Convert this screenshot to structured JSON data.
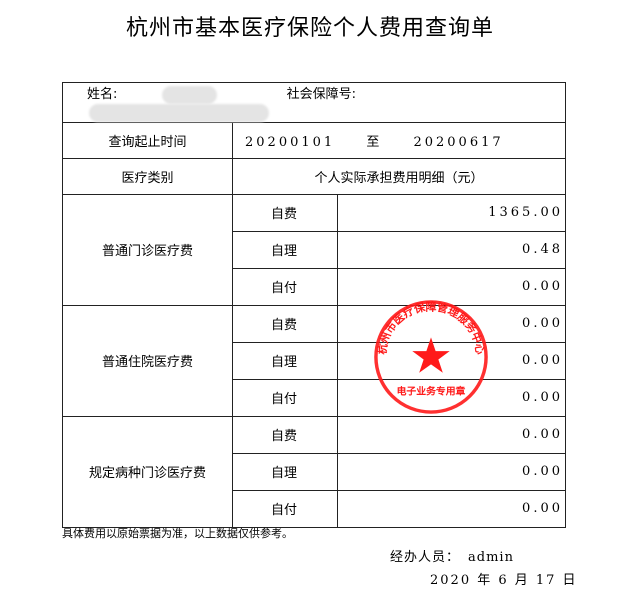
{
  "title": "杭州市基本医疗保险个人费用查询单",
  "header": {
    "name_label": "姓名:",
    "ssn_label": "社会保障号:"
  },
  "query": {
    "label": "查询起止时间",
    "start": "20200101",
    "sep": "至",
    "end": "20200617"
  },
  "columns": {
    "category": "医疗类别",
    "detail": "个人实际承担费用明细（元）"
  },
  "groups": [
    {
      "category": "普通门诊医疗费",
      "items": [
        {
          "label": "自费",
          "value": "1365.00"
        },
        {
          "label": "自理",
          "value": "0.48"
        },
        {
          "label": "自付",
          "value": "0.00"
        }
      ]
    },
    {
      "category": "普通住院医疗费",
      "items": [
        {
          "label": "自费",
          "value": "0.00"
        },
        {
          "label": "自理",
          "value": "0.00"
        },
        {
          "label": "自付",
          "value": "0.00"
        }
      ]
    },
    {
      "category": "规定病种门诊医疗费",
      "items": [
        {
          "label": "自费",
          "value": "0.00"
        },
        {
          "label": "自理",
          "value": "0.00"
        },
        {
          "label": "自付",
          "value": "0.00"
        }
      ]
    }
  ],
  "note": "具体费用以原始票据为准，以上数据仅供参考。",
  "operator": {
    "label": "经办人员：",
    "value": "admin"
  },
  "date": "2020 年 6 月 17 日",
  "stamp": {
    "outer_text": "杭州市医疗保障管理服务中心",
    "bottom_text": "电子业务专用章",
    "color": "#ff1a1a"
  }
}
